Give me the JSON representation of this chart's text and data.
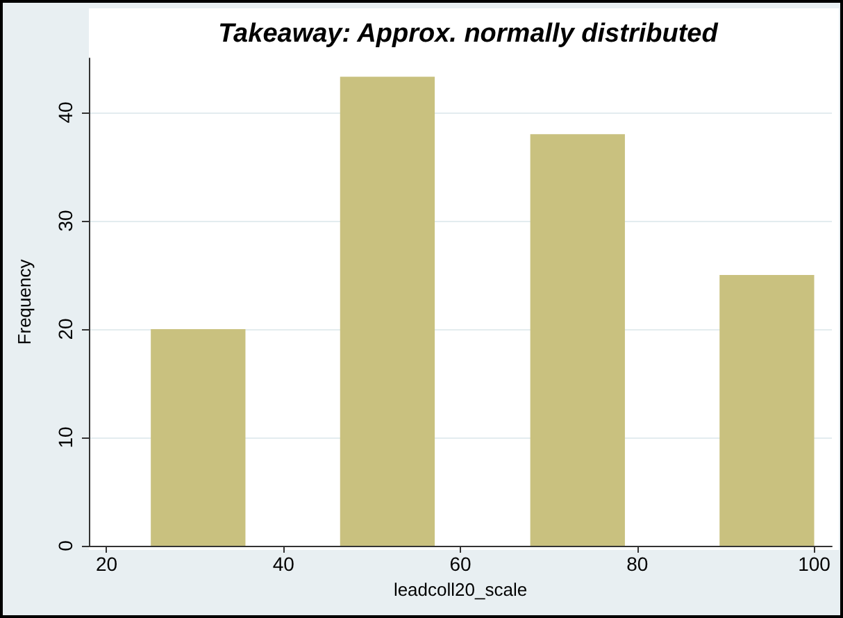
{
  "chart_data": {
    "type": "histogram",
    "title": "Takeaway: Approx. normally distributed",
    "xlabel": "leadcoll20_scale",
    "ylabel": "Frequency",
    "bins": [
      25,
      35.7,
      46.4,
      57.1,
      67.9,
      78.6,
      89.3,
      100
    ],
    "values": [
      20,
      0,
      43.3,
      0,
      38,
      0,
      25
    ],
    "color": "#c9c17f",
    "xlim": [
      18,
      102
    ],
    "xticks": [
      20,
      40,
      60,
      80,
      100
    ],
    "ylim": [
      0,
      45
    ],
    "yticks": [
      0,
      10,
      20,
      30,
      40
    ],
    "grid": "y"
  }
}
